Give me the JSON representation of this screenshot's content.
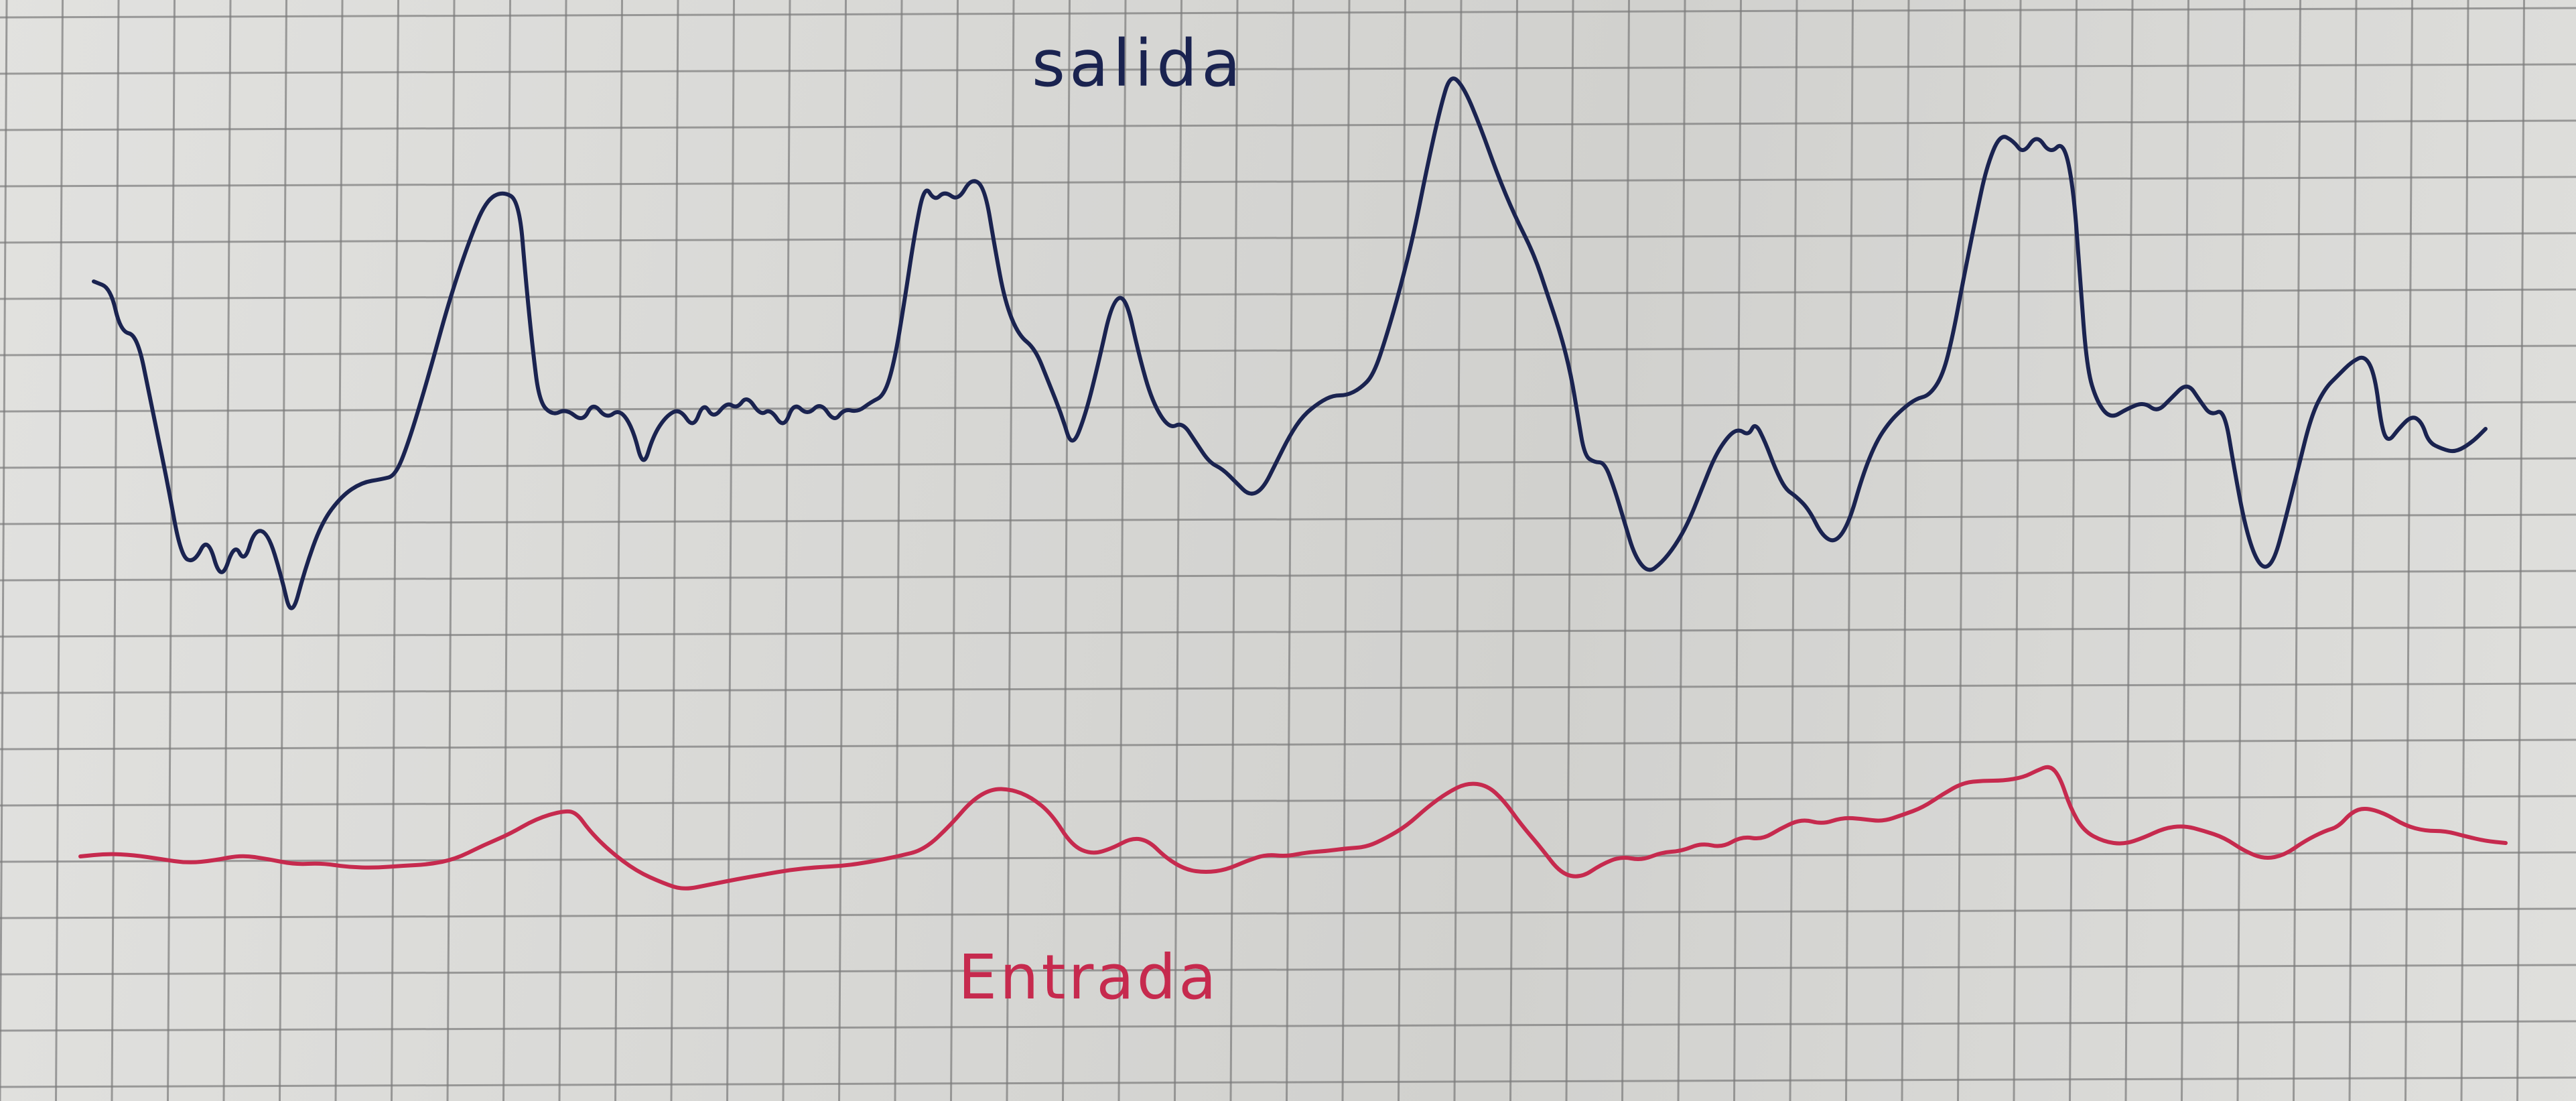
{
  "labels": {
    "salida": "salida",
    "entrada": "Entrada"
  },
  "colors": {
    "paper": "#dcdcd9",
    "grid": "#7b7b7b",
    "salida_ink": "#1a2350",
    "entrada_ink": "#c62a4e"
  }
}
